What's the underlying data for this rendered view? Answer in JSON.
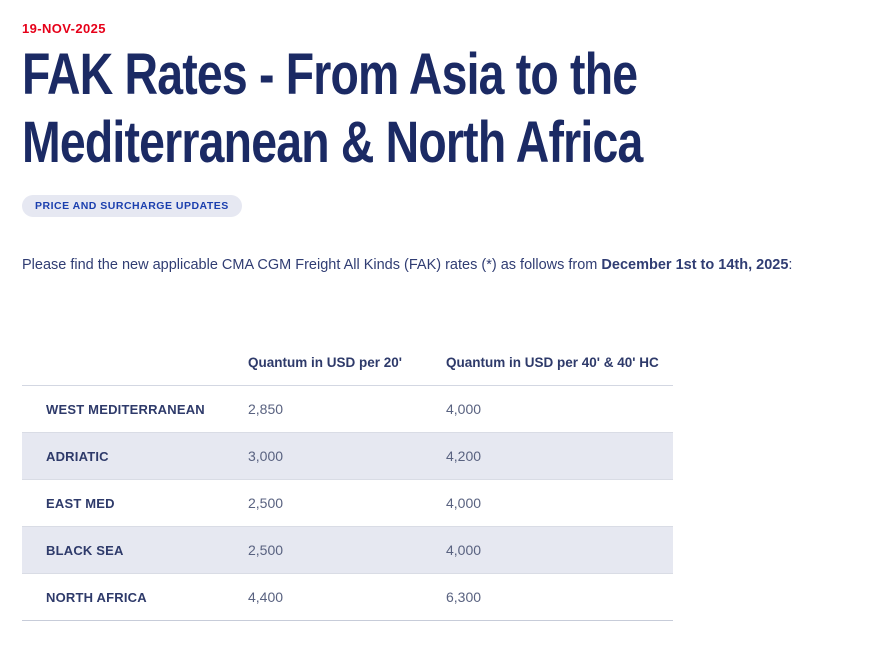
{
  "article": {
    "date": "19-NOV-2025",
    "title_line1": "FAK Rates - From Asia to the",
    "title_line2": "Mediterranean & North Africa",
    "tag": "PRICE AND SURCHARGE UPDATES",
    "intro_regular": "Please find the new applicable CMA CGM Freight All Kinds (FAK) rates (*) as follows from ",
    "intro_bold": "December 1st to 14th, 2025",
    "intro_suffix": ":"
  },
  "rates_table": {
    "columns": [
      "",
      "Quantum in USD per 20'",
      "Quantum in USD per 40' & 40' HC"
    ],
    "rows": [
      {
        "region": "WEST MEDITERRANEAN",
        "usd_per_20": "2,850",
        "usd_per_40": "4,000"
      },
      {
        "region": "ADRIATIC",
        "usd_per_20": "3,000",
        "usd_per_40": "4,200"
      },
      {
        "region": "EAST MED",
        "usd_per_20": "2,500",
        "usd_per_40": "4,000"
      },
      {
        "region": "BLACK SEA",
        "usd_per_20": "2,500",
        "usd_per_40": "4,000"
      },
      {
        "region": "NORTH AFRICA",
        "usd_per_20": "4,400",
        "usd_per_40": "6,300"
      }
    ]
  },
  "colors": {
    "accent_red": "#e60019",
    "brand_navy": "#1b2a64",
    "tag_blue": "#1b3fae",
    "row_alt_background": "#e6e8f1"
  }
}
